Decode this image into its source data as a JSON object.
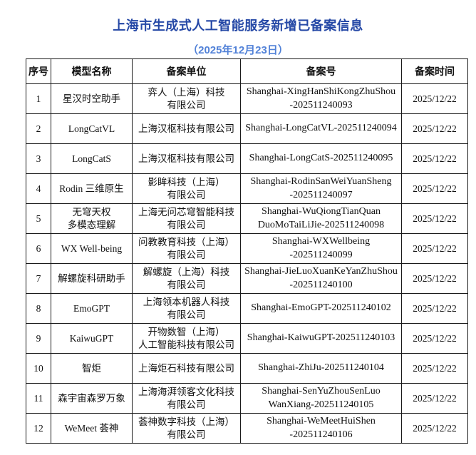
{
  "header": {
    "title": "上海市生成式人工智能服务新增已备案信息",
    "subtitle": "（2025年12月23日）",
    "title_color": "#2548a6",
    "subtitle_color": "#5282d8"
  },
  "table": {
    "headers": [
      "序号",
      "模型名称",
      "备案单位",
      "备案号",
      "备案时间"
    ],
    "rows": [
      {
        "no": "1",
        "model": "星汉时空助手",
        "company": "弈人（上海）科技\n有限公司",
        "reg_no": "Shanghai-XingHanShiKongZhuShou\n-202511240093",
        "date": "2025/12/22"
      },
      {
        "no": "2",
        "model": "LongCatVL",
        "company": "上海汉枢科技有限公司",
        "reg_no": "Shanghai-LongCatVL-202511240094",
        "date": "2025/12/22"
      },
      {
        "no": "3",
        "model": "LongCatS",
        "company": "上海汉枢科技有限公司",
        "reg_no": "Shanghai-LongCatS-202511240095",
        "date": "2025/12/22"
      },
      {
        "no": "4",
        "model": "Rodin 三维原生",
        "company": "影眸科技（上海）\n有限公司",
        "reg_no": "Shanghai-RodinSanWeiYuanSheng\n-202511240097",
        "date": "2025/12/22"
      },
      {
        "no": "5",
        "model": "无穹天权\n多模态理解",
        "company": "上海无问芯穹智能科技\n有限公司",
        "reg_no": "Shanghai-WuQiongTianQuan\nDuoMoTaiLiJie-202511240098",
        "date": "2025/12/22"
      },
      {
        "no": "6",
        "model": "WX Well-being",
        "company": "问教教育科技（上海）\n有限公司",
        "reg_no": "Shanghai-WXWellbeing\n-202511240099",
        "date": "2025/12/22"
      },
      {
        "no": "7",
        "model": "解螺旋科研助手",
        "company": "解螺旋（上海）科技\n有限公司",
        "reg_no": "Shanghai-JieLuoXuanKeYanZhuShou\n-202511240100",
        "date": "2025/12/22"
      },
      {
        "no": "8",
        "model": "EmoGPT",
        "company": "上海领本机器人科技\n有限公司",
        "reg_no": "Shanghai-EmoGPT-202511240102",
        "date": "2025/12/22"
      },
      {
        "no": "9",
        "model": "KaiwuGPT",
        "company": "开物数智（上海）\n人工智能科技有限公司",
        "reg_no": "Shanghai-KaiwuGPT-202511240103",
        "date": "2025/12/22"
      },
      {
        "no": "10",
        "model": "智炬",
        "company": "上海炬石科技有限公司",
        "reg_no": "Shanghai-ZhiJu-202511240104",
        "date": "2025/12/22"
      },
      {
        "no": "11",
        "model": "森宇宙森罗万象",
        "company": "上海海湃领客文化科技\n有限公司",
        "reg_no": "Shanghai-SenYuZhouSenLuo\nWanXiang-202511240105",
        "date": "2025/12/22"
      },
      {
        "no": "12",
        "model": "WeMeet 荟神",
        "company": "荟神数字科技（上海）\n有限公司",
        "reg_no": "Shanghai-WeMeetHuiShen\n-202511240106",
        "date": "2025/12/22"
      }
    ]
  }
}
